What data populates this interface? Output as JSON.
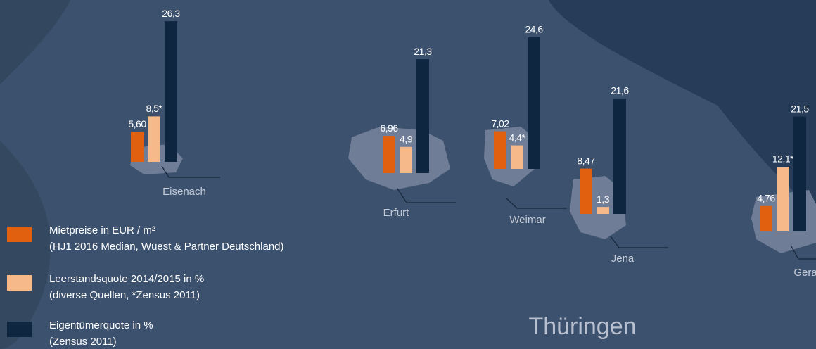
{
  "chart_data": {
    "type": "bar",
    "title": "Thüringen",
    "categories": [
      "Eisenach",
      "Erfurt",
      "Weimar",
      "Jena",
      "Gera"
    ],
    "series": [
      {
        "name": "Mietpreise in EUR / m²",
        "source": "(HJ1 2016 Median, Wüest & Partner Deutschland)",
        "color": "#e0600f",
        "values": [
          5.6,
          6.96,
          7.02,
          8.47,
          4.76
        ],
        "value_labels": [
          "5,60",
          "6,96",
          "7,02",
          "8,47",
          "4,76"
        ]
      },
      {
        "name": "Leerstandsquote 2014/2015 in %",
        "source": "(diverse Quellen, *Zensus 2011)",
        "color": "#f6b98a",
        "values": [
          8.5,
          4.9,
          4.4,
          1.3,
          12.1
        ],
        "value_labels": [
          "8,5*",
          "4,9",
          "4,4*",
          "1,3",
          "12,1*"
        ]
      },
      {
        "name": "Eigentümerquote in %",
        "source": "(Zensus 2011)",
        "color": "#0f2640",
        "values": [
          26.3,
          21.3,
          24.6,
          21.6,
          21.5
        ],
        "value_labels": [
          "26,3",
          "21,3",
          "24,6",
          "21,6",
          "21,5"
        ]
      }
    ]
  }
}
